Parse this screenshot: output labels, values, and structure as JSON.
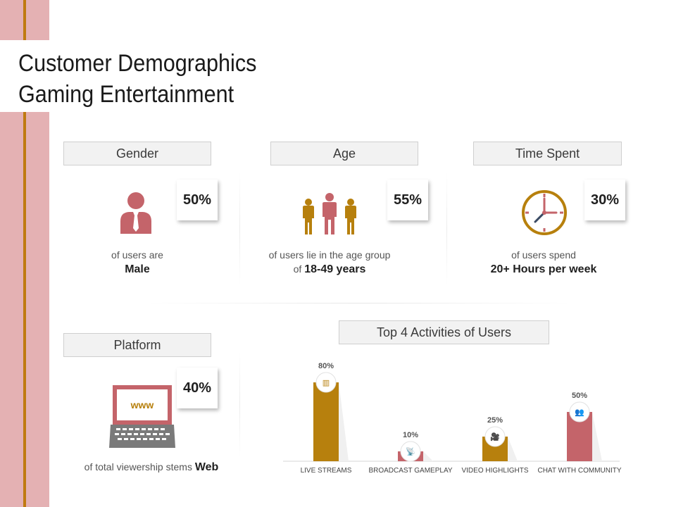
{
  "title": {
    "line1": "Customer Demographics",
    "line2": "Gaming Entertainment"
  },
  "colors": {
    "accent": "#c07a10",
    "rose": "#c4646a",
    "band": "#e4b1b3",
    "icon_brown": "#b7800d"
  },
  "gender": {
    "label": "Gender",
    "percent": "50%",
    "text1": "of users are",
    "text2": "Male",
    "icon": "person-icon"
  },
  "age": {
    "label": "Age",
    "percent": "55%",
    "text1": "of users lie in the age group",
    "text2_prefix": "of",
    "text2": "18-49 years",
    "icon": "people-icon"
  },
  "time": {
    "label": "Time Spent",
    "percent": "30%",
    "text1": "of users spend",
    "text2": "20+ Hours per week",
    "icon": "clock-icon"
  },
  "platform": {
    "label": "Platform",
    "percent": "40%",
    "text1": "of total viewership stems",
    "text2": "Web",
    "screen_text": "www",
    "icon": "laptop-icon"
  },
  "activities": {
    "label": "Top 4 Activities of Users"
  },
  "chart_data": {
    "type": "bar",
    "title": "Top 4 Activities of Users",
    "categories": [
      "LIVE STREAMS",
      "BROADCAST GAMEPLAY",
      "VIDEO HIGHLIGHTS",
      "CHAT WITH COMMUNITY"
    ],
    "values": [
      80,
      10,
      25,
      50
    ],
    "value_labels": [
      "80%",
      "10%",
      "25%",
      "50%"
    ],
    "ylim": [
      0,
      100
    ],
    "colors": [
      "#b7800d",
      "#c4646a",
      "#b7800d",
      "#c4646a"
    ],
    "icons": [
      "calendar-icon",
      "satellite-dish-icon",
      "video-camera-icon",
      "chat-people-icon"
    ],
    "grid": false,
    "xlabel": "",
    "ylabel": ""
  }
}
